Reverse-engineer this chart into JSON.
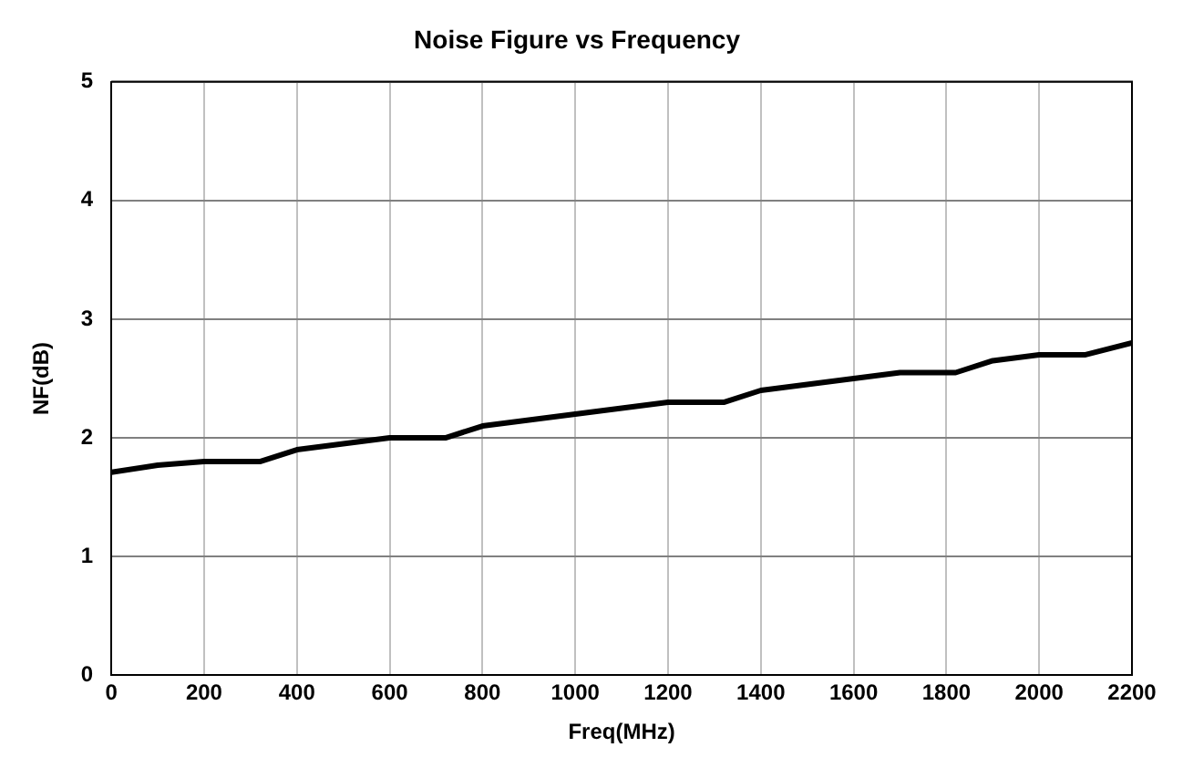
{
  "chart_data": {
    "type": "line",
    "title": "Noise Figure vs Frequency",
    "xlabel": "Freq(MHz)",
    "ylabel": "NF(dB)",
    "x": [
      0,
      100,
      200,
      300,
      320,
      400,
      500,
      600,
      700,
      720,
      800,
      900,
      1000,
      1100,
      1200,
      1300,
      1320,
      1400,
      1500,
      1600,
      1700,
      1800,
      1820,
      1900,
      2000,
      2100,
      2200
    ],
    "series": [
      {
        "color": "#000000",
        "values": [
          1.71,
          1.77,
          1.8,
          1.8,
          1.8,
          1.9,
          1.95,
          2.0,
          2.0,
          2.0,
          2.1,
          2.15,
          2.2,
          2.25,
          2.3,
          2.3,
          2.3,
          2.4,
          2.45,
          2.5,
          2.55,
          2.55,
          2.55,
          2.65,
          2.7,
          2.7,
          2.8
        ]
      }
    ],
    "xlim": [
      0,
      2200
    ],
    "xticks": [
      0,
      200,
      400,
      600,
      800,
      1000,
      1200,
      1400,
      1600,
      1800,
      2000,
      2200
    ],
    "ylim": [
      0,
      5
    ],
    "yticks": [
      0,
      1,
      2,
      3,
      4,
      5
    ],
    "grid": true,
    "legend": false,
    "marker": "none",
    "line_style": "solid"
  }
}
